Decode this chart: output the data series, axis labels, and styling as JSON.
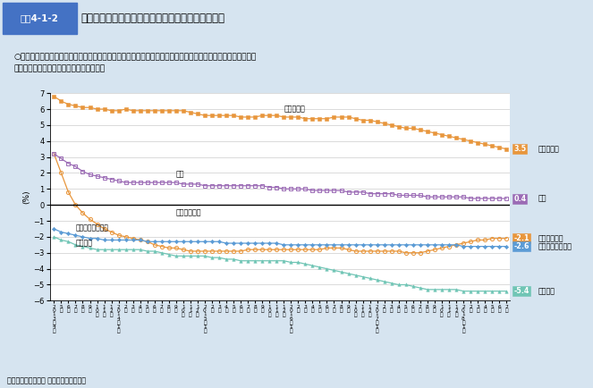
{
  "title_box": "図表4-1-2",
  "title_main": "世帯類型別被保護世帯数の対前年同月伸び率の推移",
  "subtitle": "○世帯類型別の対前年同月伸び率をみると、「高齢者世帯」は一貫してプラスとなっているが、「高齢者世帯」\n　以外の世帯は、マイナスとなっている。",
  "ylabel": "(%)",
  "source": "資料：被保護者調査 月次調査（速報値）",
  "ylim": [
    -6.0,
    7.0
  ],
  "yticks": [
    -6.0,
    -5.0,
    -4.0,
    -3.0,
    -2.0,
    -1.0,
    0.0,
    1.0,
    2.0,
    3.0,
    4.0,
    5.0,
    6.0,
    7.0
  ],
  "color_koreisha": "#E8963C",
  "color_sosuu": "#9B6BB5",
  "color_sonota": "#E8963C",
  "color_shobyou": "#5B9BD5",
  "color_boshi": "#70C5B5",
  "koreisha": [
    6.8,
    6.5,
    6.3,
    6.2,
    6.1,
    6.1,
    6.0,
    6.0,
    5.9,
    5.9,
    6.0,
    5.9,
    5.9,
    5.9,
    5.9,
    5.9,
    5.9,
    5.9,
    5.9,
    5.8,
    5.7,
    5.6,
    5.6,
    5.6,
    5.6,
    5.6,
    5.5,
    5.5,
    5.5,
    5.6,
    5.6,
    5.6,
    5.5,
    5.5,
    5.5,
    5.4,
    5.4,
    5.4,
    5.4,
    5.5,
    5.5,
    5.5,
    5.4,
    5.3,
    5.3,
    5.2,
    5.1,
    5.0,
    4.9,
    4.8,
    4.8,
    4.7,
    4.6,
    4.5,
    4.4,
    4.3,
    4.2,
    4.1,
    4.0,
    3.9,
    3.8,
    3.7,
    3.6,
    3.5
  ],
  "sosuu": [
    3.2,
    2.9,
    2.6,
    2.4,
    2.1,
    1.9,
    1.8,
    1.7,
    1.6,
    1.5,
    1.4,
    1.4,
    1.4,
    1.4,
    1.4,
    1.4,
    1.4,
    1.4,
    1.3,
    1.3,
    1.3,
    1.2,
    1.2,
    1.2,
    1.2,
    1.2,
    1.2,
    1.2,
    1.2,
    1.2,
    1.1,
    1.1,
    1.0,
    1.0,
    1.0,
    1.0,
    0.9,
    0.9,
    0.9,
    0.9,
    0.9,
    0.8,
    0.8,
    0.8,
    0.7,
    0.7,
    0.7,
    0.7,
    0.6,
    0.6,
    0.6,
    0.6,
    0.5,
    0.5,
    0.5,
    0.5,
    0.5,
    0.5,
    0.4,
    0.4,
    0.4,
    0.4,
    0.4,
    0.4
  ],
  "sonota": [
    3.2,
    2.0,
    0.8,
    0.0,
    -0.5,
    -0.9,
    -1.2,
    -1.5,
    -1.7,
    -1.9,
    -2.0,
    -2.1,
    -2.2,
    -2.3,
    -2.5,
    -2.6,
    -2.7,
    -2.7,
    -2.8,
    -2.9,
    -2.9,
    -2.9,
    -2.9,
    -2.9,
    -2.9,
    -2.9,
    -2.9,
    -2.8,
    -2.8,
    -2.8,
    -2.8,
    -2.8,
    -2.8,
    -2.8,
    -2.8,
    -2.8,
    -2.8,
    -2.8,
    -2.7,
    -2.7,
    -2.7,
    -2.8,
    -2.9,
    -2.9,
    -2.9,
    -2.9,
    -2.9,
    -2.9,
    -2.9,
    -3.0,
    -3.0,
    -3.0,
    -2.9,
    -2.8,
    -2.7,
    -2.6,
    -2.5,
    -2.4,
    -2.3,
    -2.2,
    -2.2,
    -2.1,
    -2.1,
    -2.1
  ],
  "shobyou": [
    -1.5,
    -1.7,
    -1.8,
    -1.9,
    -2.0,
    -2.1,
    -2.1,
    -2.2,
    -2.2,
    -2.2,
    -2.2,
    -2.2,
    -2.2,
    -2.3,
    -2.3,
    -2.3,
    -2.3,
    -2.3,
    -2.3,
    -2.3,
    -2.3,
    -2.3,
    -2.3,
    -2.3,
    -2.4,
    -2.4,
    -2.4,
    -2.4,
    -2.4,
    -2.4,
    -2.4,
    -2.4,
    -2.5,
    -2.5,
    -2.5,
    -2.5,
    -2.5,
    -2.5,
    -2.5,
    -2.5,
    -2.5,
    -2.5,
    -2.5,
    -2.5,
    -2.5,
    -2.5,
    -2.5,
    -2.5,
    -2.5,
    -2.5,
    -2.5,
    -2.5,
    -2.5,
    -2.5,
    -2.5,
    -2.5,
    -2.5,
    -2.6,
    -2.6,
    -2.6,
    -2.6,
    -2.6,
    -2.6,
    -2.6
  ],
  "boshi": [
    -2.0,
    -2.2,
    -2.3,
    -2.5,
    -2.6,
    -2.7,
    -2.8,
    -2.8,
    -2.8,
    -2.8,
    -2.8,
    -2.8,
    -2.8,
    -2.9,
    -2.9,
    -3.0,
    -3.1,
    -3.2,
    -3.2,
    -3.2,
    -3.2,
    -3.2,
    -3.3,
    -3.3,
    -3.4,
    -3.4,
    -3.5,
    -3.5,
    -3.5,
    -3.5,
    -3.5,
    -3.5,
    -3.5,
    -3.6,
    -3.6,
    -3.7,
    -3.8,
    -3.9,
    -4.0,
    -4.1,
    -4.2,
    -4.3,
    -4.4,
    -4.5,
    -4.6,
    -4.7,
    -4.8,
    -4.9,
    -5.0,
    -5.0,
    -5.1,
    -5.2,
    -5.3,
    -5.3,
    -5.3,
    -5.3,
    -5.3,
    -5.4,
    -5.4,
    -5.4,
    -5.4,
    -5.4,
    -5.4,
    -5.4
  ],
  "months_sequence": [
    4,
    5,
    6,
    7,
    8,
    9,
    10,
    11,
    12,
    1,
    2,
    3,
    4,
    5,
    6,
    7,
    8,
    9,
    10,
    11,
    12,
    1,
    2,
    3,
    4,
    5,
    6,
    7,
    8,
    9,
    10,
    11,
    12,
    1,
    2,
    3,
    4,
    5,
    6,
    7,
    8,
    9,
    10,
    11,
    12,
    1,
    2,
    3,
    4,
    5,
    6,
    7,
    8,
    9,
    10,
    11,
    12,
    1,
    2,
    3,
    4,
    5,
    6,
    7
  ],
  "years_sequence": [
    2013,
    2013,
    2013,
    2013,
    2013,
    2013,
    2013,
    2013,
    2013,
    2014,
    2014,
    2014,
    2014,
    2014,
    2014,
    2014,
    2014,
    2014,
    2014,
    2014,
    2014,
    2015,
    2015,
    2015,
    2015,
    2015,
    2015,
    2015,
    2015,
    2015,
    2015,
    2015,
    2015,
    2016,
    2016,
    2016,
    2016,
    2016,
    2016,
    2016,
    2016,
    2016,
    2016,
    2016,
    2016,
    2017,
    2017,
    2017,
    2017,
    2017,
    2017,
    2017,
    2017,
    2017,
    2017,
    2017,
    2017,
    2018,
    2018,
    2018,
    2018,
    2018,
    2018,
    2018
  ],
  "year_label_indices": [
    0,
    9,
    21,
    33,
    45,
    57
  ],
  "year_labels": [
    "2\n0\n1\n3\n年\n4\n月",
    "2\n0\n1\n4\n年\n1\n月",
    "2\n0\n1\n5\n年\n1\n月",
    "2\n0\n1\n6\n年\n1\n月",
    "2\n0\n1\n7\n年\n1\n月",
    "2\n0\n1\n8\n年\n1\n月"
  ],
  "background_color": "#D6E4F0",
  "plot_background": "#FFFFFF",
  "header_color": "#4472C4"
}
